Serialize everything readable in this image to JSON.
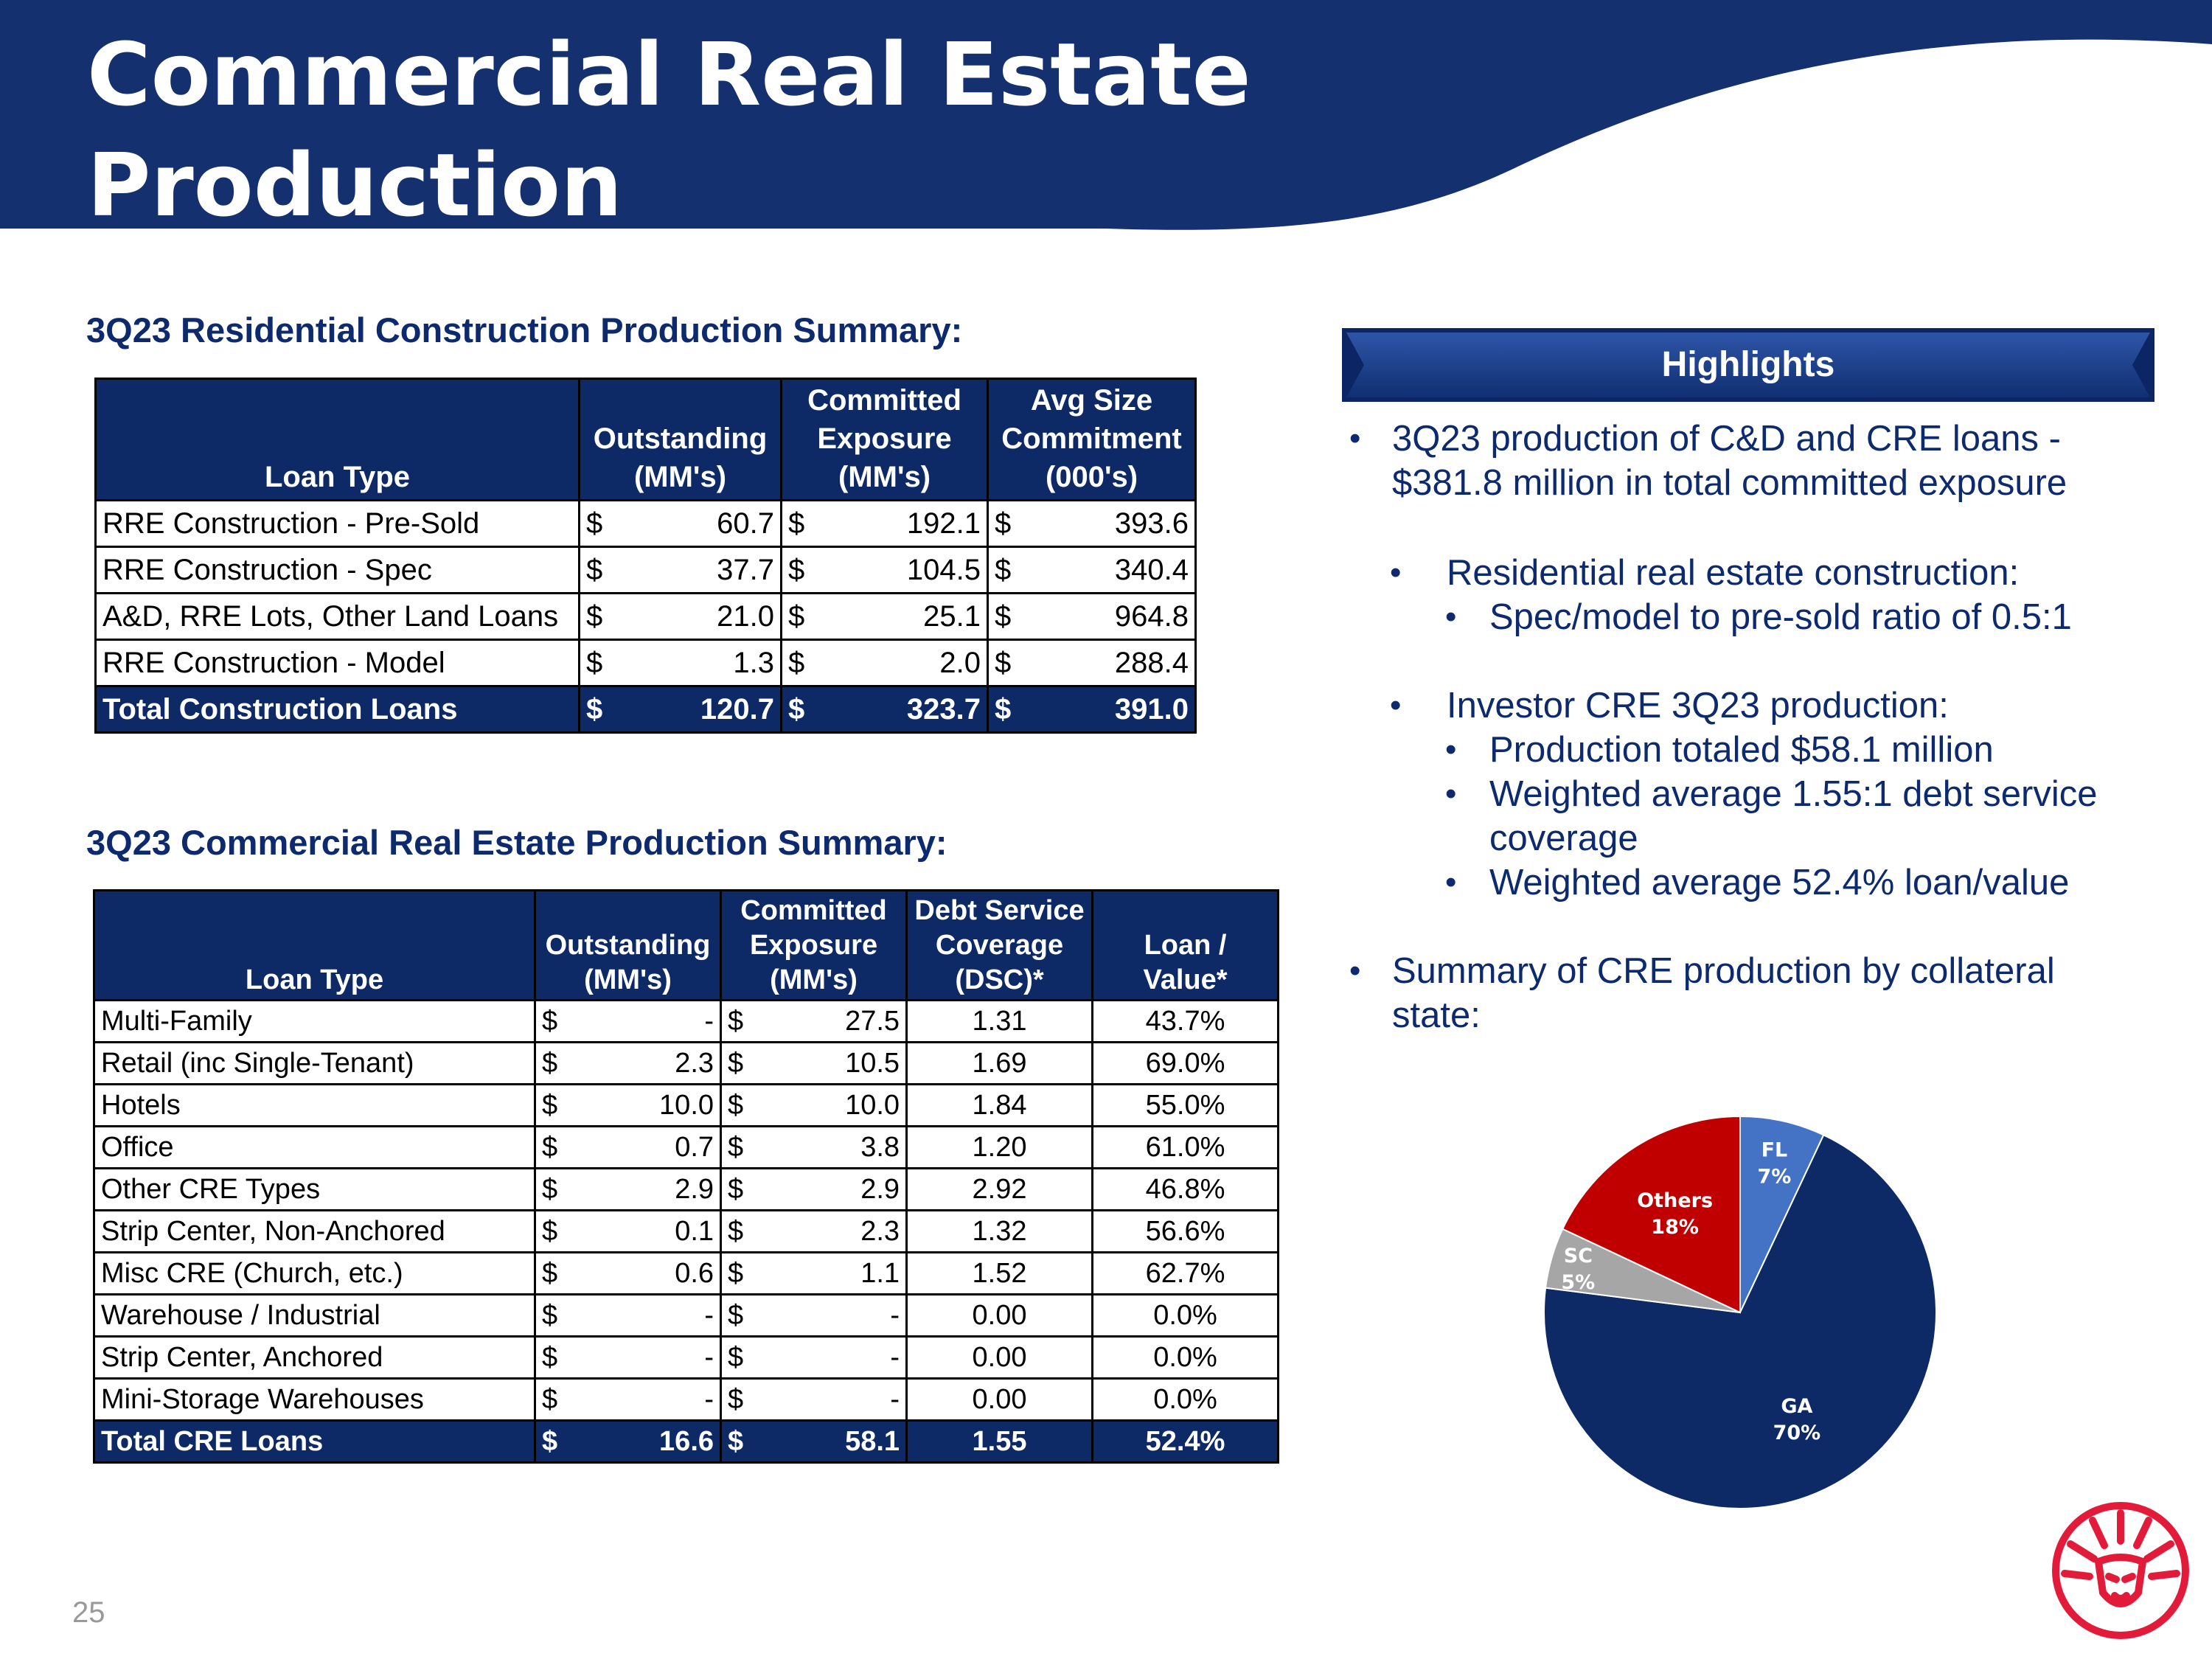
{
  "slide": {
    "title_line1": "Commercial Real Estate",
    "title_line2": "Production",
    "page_number": "25",
    "colors": {
      "navy": "#0e2a66",
      "title_band": "#14306e",
      "accent_red": "#c00000",
      "logo_red": "#e31b3b"
    }
  },
  "residential": {
    "title": "3Q23 Residential Construction Production Summary:",
    "headers": {
      "loan_type": "Loan Type",
      "outstanding": [
        "Outstanding",
        "(MM's)"
      ],
      "committed": [
        "Committed",
        "Exposure",
        "(MM's)"
      ],
      "avg_size": [
        "Avg Size",
        "Commitment",
        "(000's)"
      ]
    },
    "rows": [
      {
        "type": "RRE Construction - Pre-Sold",
        "out_sym": "$",
        "out": "60.7",
        "com_sym": "$",
        "com": "192.1",
        "avg_sym": "$",
        "avg": "393.6"
      },
      {
        "type": "RRE Construction - Spec",
        "out_sym": "$",
        "out": "37.7",
        "com_sym": "$",
        "com": "104.5",
        "avg_sym": "$",
        "avg": "340.4"
      },
      {
        "type": "A&D, RRE Lots, Other Land Loans",
        "out_sym": "$",
        "out": "21.0",
        "com_sym": "$",
        "com": "25.1",
        "avg_sym": "$",
        "avg": "964.8"
      },
      {
        "type": "RRE Construction - Model",
        "out_sym": "$",
        "out": "1.3",
        "com_sym": "$",
        "com": "2.0",
        "avg_sym": "$",
        "avg": "288.4"
      }
    ],
    "total": {
      "type": "Total Construction Loans",
      "out_sym": "$",
      "out": "120.7",
      "com_sym": "$",
      "com": "323.7",
      "avg_sym": "$",
      "avg": "391.0"
    }
  },
  "cre": {
    "title": "3Q23 Commercial Real Estate Production Summary:",
    "headers": {
      "loan_type": "Loan Type",
      "outstanding": [
        "Outstanding",
        "(MM's)"
      ],
      "committed": [
        "Committed",
        "Exposure",
        "(MM's)"
      ],
      "dsc": [
        "Debt Service",
        "Coverage",
        "(DSC)*"
      ],
      "ltv": [
        "Loan /",
        "Value*"
      ]
    },
    "rows": [
      {
        "type": "Multi-Family",
        "out_sym": "$",
        "out": "-",
        "com_sym": "$",
        "com": "27.5",
        "dsc": "1.31",
        "ltv": "43.7%"
      },
      {
        "type": "Retail (inc Single-Tenant)",
        "out_sym": "$",
        "out": "2.3",
        "com_sym": "$",
        "com": "10.5",
        "dsc": "1.69",
        "ltv": "69.0%"
      },
      {
        "type": "Hotels",
        "out_sym": "$",
        "out": "10.0",
        "com_sym": "$",
        "com": "10.0",
        "dsc": "1.84",
        "ltv": "55.0%"
      },
      {
        "type": "Office",
        "out_sym": "$",
        "out": "0.7",
        "com_sym": "$",
        "com": "3.8",
        "dsc": "1.20",
        "ltv": "61.0%"
      },
      {
        "type": "Other CRE Types",
        "out_sym": "$",
        "out": "2.9",
        "com_sym": "$",
        "com": "2.9",
        "dsc": "2.92",
        "ltv": "46.8%"
      },
      {
        "type": "Strip Center, Non-Anchored",
        "out_sym": "$",
        "out": "0.1",
        "com_sym": "$",
        "com": "2.3",
        "dsc": "1.32",
        "ltv": "56.6%"
      },
      {
        "type": "Misc CRE (Church, etc.)",
        "out_sym": "$",
        "out": "0.6",
        "com_sym": "$",
        "com": "1.1",
        "dsc": "1.52",
        "ltv": "62.7%"
      },
      {
        "type": "Warehouse / Industrial",
        "out_sym": "$",
        "out": "-",
        "com_sym": "$",
        "com": "-",
        "dsc": "0.00",
        "ltv": "0.0%"
      },
      {
        "type": "Strip Center, Anchored",
        "out_sym": "$",
        "out": "-",
        "com_sym": "$",
        "com": "-",
        "dsc": "0.00",
        "ltv": "0.0%"
      },
      {
        "type": "Mini-Storage Warehouses",
        "out_sym": "$",
        "out": "-",
        "com_sym": "$",
        "com": "-",
        "dsc": "0.00",
        "ltv": "0.0%"
      }
    ],
    "total": {
      "type": "Total CRE Loans",
      "out_sym": "$",
      "out": "16.6",
      "com_sym": "$",
      "com": "58.1",
      "dsc": "1.55",
      "ltv": "52.4%"
    }
  },
  "highlights": {
    "title": "Highlights",
    "b1": [
      "3Q23 production of C&D and CRE loans -",
      "$381.8 million in total committed exposure"
    ],
    "b2": "Residential real estate construction:",
    "b2_1": "Spec/model to pre-sold ratio of 0.5:1",
    "b3": "Investor CRE 3Q23 production:",
    "b3_1": "Production totaled $58.1 million",
    "b3_2": [
      "Weighted average 1.55:1 debt service",
      "coverage"
    ],
    "b3_3": "Weighted average 52.4% loan/value",
    "b4": [
      "Summary of CRE production by collateral",
      "state:"
    ]
  },
  "chart_data": {
    "type": "pie",
    "slices": [
      {
        "label": "FL",
        "value": 7,
        "pct_label": "7%",
        "color": "#4472c4"
      },
      {
        "label": "GA",
        "value": 70,
        "pct_label": "70%",
        "color": "#0e2a66"
      },
      {
        "label": "SC",
        "value": 5,
        "pct_label": "5%",
        "color": "#a6a6a6"
      },
      {
        "label": "Others",
        "value": 18,
        "pct_label": "18%",
        "color": "#c00000"
      }
    ]
  }
}
